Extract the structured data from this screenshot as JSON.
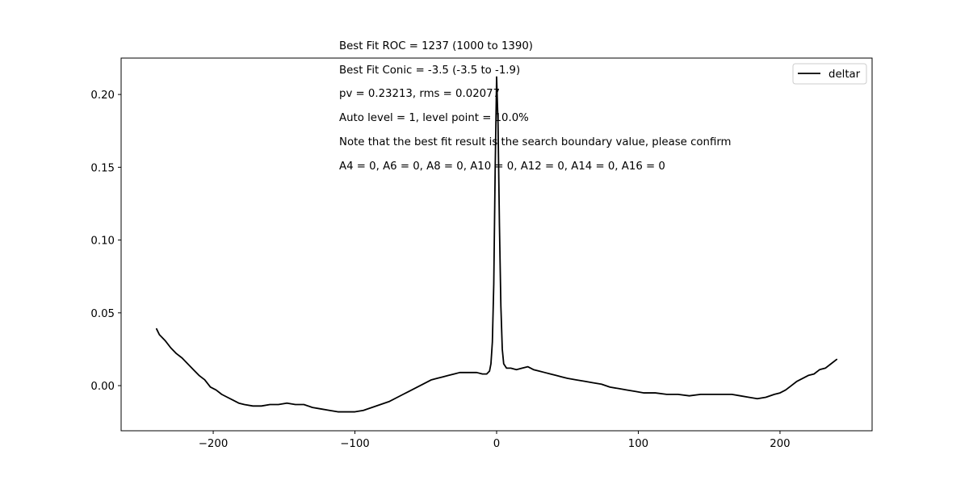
{
  "chart_data": {
    "type": "line",
    "xlim": [
      -265,
      265
    ],
    "ylim": [
      -0.031,
      0.225
    ],
    "x_ticks": [
      -200,
      -100,
      0,
      100,
      200
    ],
    "x_tick_labels": [
      "−200",
      "−100",
      "0",
      "100",
      "200"
    ],
    "y_ticks": [
      0.0,
      0.05,
      0.1,
      0.15,
      0.2
    ],
    "y_tick_labels": [
      "0.00",
      "0.05",
      "0.10",
      "0.15",
      "0.20"
    ],
    "grid": false,
    "legend_position": "upper-right",
    "series": [
      {
        "name": "deltar",
        "color": "#000000",
        "points": [
          [
            -240,
            0.039
          ],
          [
            -238,
            0.035
          ],
          [
            -234,
            0.031
          ],
          [
            -230,
            0.026
          ],
          [
            -226,
            0.022
          ],
          [
            -222,
            0.019
          ],
          [
            -218,
            0.015
          ],
          [
            -214,
            0.011
          ],
          [
            -210,
            0.007
          ],
          [
            -206,
            0.004
          ],
          [
            -202,
            -0.001
          ],
          [
            -198,
            -0.003
          ],
          [
            -194,
            -0.006
          ],
          [
            -190,
            -0.008
          ],
          [
            -186,
            -0.01
          ],
          [
            -182,
            -0.012
          ],
          [
            -178,
            -0.013
          ],
          [
            -172,
            -0.014
          ],
          [
            -166,
            -0.014
          ],
          [
            -160,
            -0.013
          ],
          [
            -154,
            -0.013
          ],
          [
            -148,
            -0.012
          ],
          [
            -142,
            -0.013
          ],
          [
            -136,
            -0.013
          ],
          [
            -130,
            -0.015
          ],
          [
            -124,
            -0.016
          ],
          [
            -118,
            -0.017
          ],
          [
            -112,
            -0.018
          ],
          [
            -106,
            -0.018
          ],
          [
            -100,
            -0.018
          ],
          [
            -94,
            -0.017
          ],
          [
            -88,
            -0.015
          ],
          [
            -82,
            -0.013
          ],
          [
            -76,
            -0.011
          ],
          [
            -70,
            -0.008
          ],
          [
            -66,
            -0.006
          ],
          [
            -62,
            -0.004
          ],
          [
            -58,
            -0.002
          ],
          [
            -54,
            0.0
          ],
          [
            -50,
            0.002
          ],
          [
            -46,
            0.004
          ],
          [
            -42,
            0.005
          ],
          [
            -38,
            0.006
          ],
          [
            -34,
            0.007
          ],
          [
            -30,
            0.008
          ],
          [
            -26,
            0.009
          ],
          [
            -22,
            0.009
          ],
          [
            -18,
            0.009
          ],
          [
            -14,
            0.009
          ],
          [
            -10,
            0.008
          ],
          [
            -7,
            0.008
          ],
          [
            -5,
            0.01
          ],
          [
            -4,
            0.015
          ],
          [
            -3,
            0.03
          ],
          [
            -2,
            0.07
          ],
          [
            -1,
            0.15
          ],
          [
            0,
            0.212
          ],
          [
            1,
            0.18
          ],
          [
            2,
            0.11
          ],
          [
            3,
            0.055
          ],
          [
            4,
            0.025
          ],
          [
            5,
            0.015
          ],
          [
            7,
            0.012
          ],
          [
            10,
            0.012
          ],
          [
            14,
            0.011
          ],
          [
            18,
            0.012
          ],
          [
            22,
            0.013
          ],
          [
            26,
            0.011
          ],
          [
            30,
            0.01
          ],
          [
            34,
            0.009
          ],
          [
            38,
            0.008
          ],
          [
            42,
            0.007
          ],
          [
            46,
            0.006
          ],
          [
            50,
            0.005
          ],
          [
            56,
            0.004
          ],
          [
            62,
            0.003
          ],
          [
            68,
            0.002
          ],
          [
            74,
            0.001
          ],
          [
            80,
            -0.001
          ],
          [
            86,
            -0.002
          ],
          [
            92,
            -0.003
          ],
          [
            98,
            -0.004
          ],
          [
            104,
            -0.005
          ],
          [
            112,
            -0.005
          ],
          [
            120,
            -0.006
          ],
          [
            128,
            -0.006
          ],
          [
            136,
            -0.007
          ],
          [
            144,
            -0.006
          ],
          [
            152,
            -0.006
          ],
          [
            160,
            -0.006
          ],
          [
            166,
            -0.006
          ],
          [
            172,
            -0.007
          ],
          [
            178,
            -0.008
          ],
          [
            184,
            -0.009
          ],
          [
            190,
            -0.008
          ],
          [
            196,
            -0.006
          ],
          [
            200,
            -0.005
          ],
          [
            204,
            -0.003
          ],
          [
            208,
            0.0
          ],
          [
            212,
            0.003
          ],
          [
            216,
            0.005
          ],
          [
            220,
            0.007
          ],
          [
            224,
            0.008
          ],
          [
            228,
            0.011
          ],
          [
            232,
            0.012
          ],
          [
            236,
            0.015
          ],
          [
            240,
            0.018
          ]
        ]
      }
    ]
  },
  "annotations": [
    "Best Fit ROC = 1237  (1000 to 1390)",
    "Best Fit Conic = -3.5  (-3.5 to -1.9)",
    "pv = 0.23213, rms = 0.02077",
    "Auto level = 1, level point = 10.0%",
    "Note that the best fit result is the search boundary value, please confirm",
    "A4 = 0, A6 = 0, A8 = 0, A10 = 0, A12 = 0, A14 = 0, A16 = 0"
  ]
}
